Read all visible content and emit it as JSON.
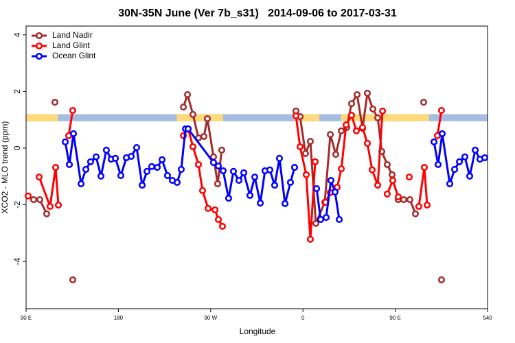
{
  "chart_data": {
    "type": "line",
    "title": "30N-35N June (Ver 7b_s31)   2014-09-06 to 2017-03-31",
    "xlabel": "Longitude",
    "ylabel": "XCO2 - MLO trend (ppm)",
    "xlim": [
      90,
      540
    ],
    "xticks": [
      {
        "value": 90,
        "label": "90 E"
      },
      180,
      {
        "value": 270,
        "label": "90 W"
      },
      {
        "value": 360,
        "label": "0"
      },
      {
        "value": 450,
        "label": "90 E"
      },
      540
    ],
    "ylim": [
      -5.67,
      4.31
    ],
    "yticks": [
      4,
      2,
      0,
      -2,
      -4
    ],
    "legend": "top-left",
    "mask": {
      "ylim": [
        0.95,
        1.2
      ],
      "ocean_color": "#a7bddf",
      "land_color": "#ffd97a",
      "land": [
        [
          90,
          121
        ],
        [
          237,
          282
        ],
        [
          352,
          376
        ],
        [
          397,
          483
        ]
      ]
    },
    "series": [
      {
        "name": "Land Nadir",
        "color": "#a52a2a",
        "x": [
          97.4,
          103.4,
          110.1,
          null,
          118.1,
          null,
          135.5,
          null,
          243.4,
          247.4,
          252.7,
          258.1,
          263.4,
          266.8,
          272.8,
          276.8,
          280.8,
          null,
          353.2,
          357.2,
          362.5,
          367.2,
          372.6,
          381.3,
          386.7,
          392.0,
          397.4,
          402.7,
          407.4,
          412.8,
          418.1,
          422.8,
          428.2,
          432.9,
          436.9,
          442.2,
          446.9,
          null,
          452.9,
          458.3,
          464.3,
          469.7,
          null,
          477.7,
          null,
          495.1
        ],
        "values": [
          -1.82,
          -1.82,
          -2.32,
          null,
          1.62,
          null,
          -4.65,
          null,
          1.45,
          1.89,
          1.19,
          0.36,
          0.41,
          1.04,
          -0.31,
          -1.26,
          -0.07,
          null,
          1.31,
          1.11,
          -0.19,
          0.24,
          -2.66,
          -1.91,
          0.48,
          -0.22,
          0.61,
          0.73,
          1.57,
          1.89,
          0.7,
          1.94,
          1.38,
          1.07,
          -0.12,
          -0.58,
          -0.94,
          null,
          -1.82,
          -1.82,
          -1.82,
          -2.32,
          null,
          1.62,
          null,
          -4.65
        ]
      },
      {
        "name": "Land Glint",
        "color": "#ff0000",
        "x": [
          92.0,
          null,
          102.7,
          113.4,
          118.8,
          121.5,
          null,
          131.5,
          135.5,
          null,
          243.4,
          248.1,
          252.7,
          258.1,
          262.1,
          267.5,
          274.2,
          277.5,
          281.5,
          null,
          353.2,
          357.2,
          363.2,
          367.2,
          371.9,
          null,
          382.0,
          386.7,
          393.4,
          397.4,
          402.1,
          407.4,
          412.1,
          418.1,
          422.8,
          427.5,
          432.9,
          437.6,
          null,
          442.2,
          447.6,
          452.9,
          null,
          463.7,
          null,
          473.0,
          478.4,
          481.1,
          null,
          491.1,
          495.1
        ],
        "values": [
          -1.69,
          null,
          -1.02,
          -2.06,
          -0.68,
          -2.01,
          null,
          0.44,
          1.33,
          null,
          0.44,
          0.68,
          0.05,
          -0.58,
          -1.5,
          -2.13,
          -2.18,
          -2.52,
          -2.76,
          null,
          1.14,
          0.05,
          -0.94,
          -3.22,
          -0.48,
          null,
          -1.91,
          -1.57,
          -1.38,
          -0.73,
          0.82,
          1.16,
          0.61,
          0.73,
          0.17,
          -0.77,
          -1.31,
          1.31,
          null,
          -1.62,
          -1.14,
          -1.72,
          null,
          -1.02,
          null,
          -2.06,
          -0.68,
          -2.01,
          null,
          0.44,
          1.33
        ]
      },
      {
        "name": "Ocean Glint",
        "color": "#0000ff",
        "x": [
          128.2,
          132.2,
          136.2,
          143.6,
          148.3,
          152.9,
          158.3,
          163.0,
          168.3,
          173.0,
          177.1,
          182.4,
          187.8,
          192.5,
          197.8,
          203.2,
          207.9,
          212.5,
          217.9,
          222.6,
          227.9,
          232.6,
          237.3,
          241.3,
          245.4,
          248.0,
          272.8,
          277.5,
          282.2,
          287.5,
          292.2,
          297.6,
          302.3,
          308.3,
          313.0,
          318.4,
          323.0,
          327.7,
          332.4,
          337.1,
          342.5,
          347.8,
          351.8,
          null,
          373.3,
          377.3,
          382.6,
          387.3,
          391.3,
          395.4,
          null,
          487.8,
          491.8,
          495.8,
          503.2,
          507.9,
          512.6,
          517.9,
          522.6,
          528.0,
          532.6,
          537.3
        ],
        "values": [
          0.22,
          -0.58,
          0.51,
          -1.26,
          -0.75,
          -0.48,
          -0.31,
          -0.99,
          -0.07,
          -0.39,
          -0.36,
          -0.97,
          -0.34,
          -0.29,
          0.02,
          -1.31,
          -0.82,
          -0.65,
          -0.68,
          -0.41,
          -0.97,
          -1.14,
          -1.21,
          -0.75,
          0.68,
          0.68,
          -0.51,
          -0.63,
          -0.8,
          -1.77,
          -0.82,
          -1.14,
          -0.87,
          -1.67,
          -1.02,
          -1.94,
          -0.8,
          -0.77,
          -1.31,
          -0.36,
          -1.96,
          -1.21,
          -0.68,
          null,
          -1.43,
          -2.52,
          -2.45,
          -1.14,
          -1.55,
          -2.52,
          null,
          0.22,
          -0.58,
          0.51,
          -1.26,
          -0.75,
          -0.48,
          -0.31,
          -0.99,
          -0.07,
          -0.39,
          -0.34
        ]
      }
    ]
  }
}
